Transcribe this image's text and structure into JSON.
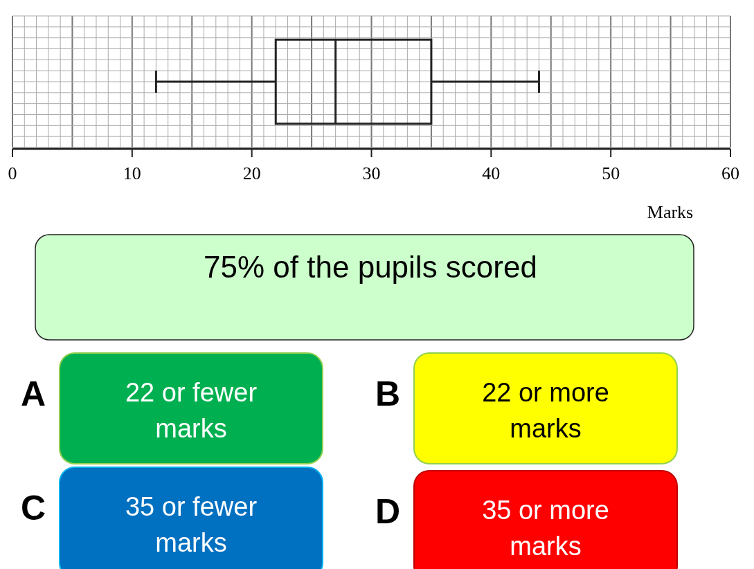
{
  "chart_data": [
    {
      "type": "box",
      "orientation": "horizontal",
      "categories": [
        null
      ],
      "boxes": [
        {
          "low": 12,
          "q1": 22,
          "median": 27,
          "q3": 35,
          "high": 44
        }
      ],
      "xlim": [
        0,
        60
      ],
      "xticks": [
        0,
        10,
        20,
        30,
        40,
        50,
        60
      ],
      "xlabel": "Marks",
      "grid": true,
      "tick_labels": "x"
    },
    {
      "type": "other",
      "title": "75% of the pupils scored",
      "annotations": [
        "A",
        "22 or fewer marks",
        "B",
        "22 or more marks",
        "C",
        "35 or fewer marks",
        "D",
        "35 or more marks"
      ]
    }
  ]
}
